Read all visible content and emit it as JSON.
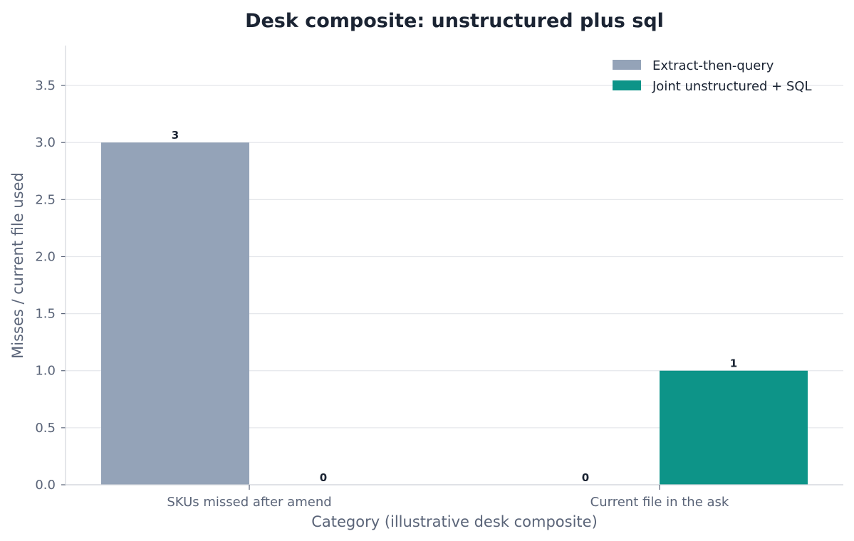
{
  "chart_data": {
    "type": "bar",
    "title": "Desk composite: unstructured plus sql",
    "xlabel": "Category (illustrative desk composite)",
    "ylabel": "Misses / current file used",
    "categories": [
      "SKUs missed after amend",
      "Current file in the ask"
    ],
    "series": [
      {
        "name": "Extract-then-query",
        "values": [
          3,
          0
        ],
        "color": "#94a3b8"
      },
      {
        "name": "Joint unstructured + SQL",
        "values": [
          0,
          1
        ],
        "color": "#0d9488"
      }
    ],
    "ylim": [
      0,
      3.85
    ],
    "yticks": [
      0.0,
      0.5,
      1.0,
      1.5,
      2.0,
      2.5,
      3.0,
      3.5
    ],
    "ytick_labels": [
      "0.0",
      "0.5",
      "1.0",
      "1.5",
      "2.0",
      "2.5",
      "3.0",
      "3.5"
    ],
    "grid": true,
    "legend_position": "top-right",
    "colors": {
      "grid": "#e5e7eb",
      "axis": "#d1d5db",
      "text": "#1b2433",
      "muted": "#5a6478"
    }
  }
}
